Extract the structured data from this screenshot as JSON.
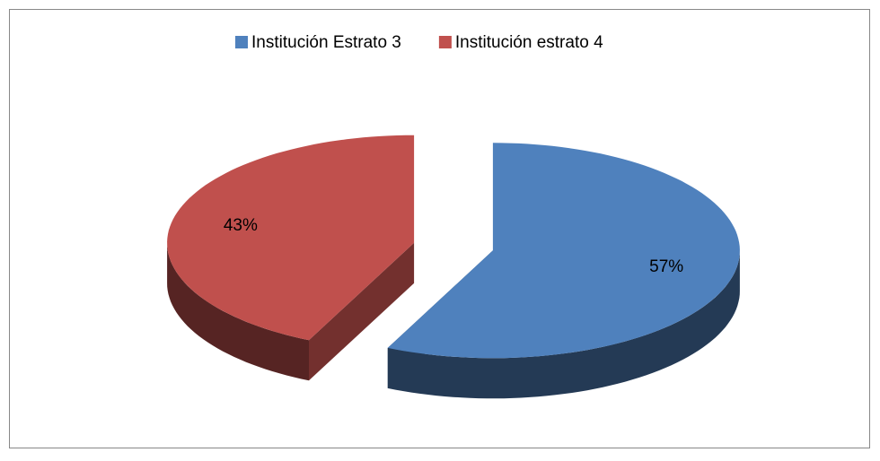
{
  "chart_data": {
    "type": "pie",
    "categories": [
      "Institución Estrato 3",
      "Institución estrato 4"
    ],
    "values": [
      57,
      43
    ],
    "value_labels": [
      "57%",
      "43%"
    ],
    "colors": [
      "#4f81bd",
      "#c0504d"
    ],
    "legend": "top"
  }
}
